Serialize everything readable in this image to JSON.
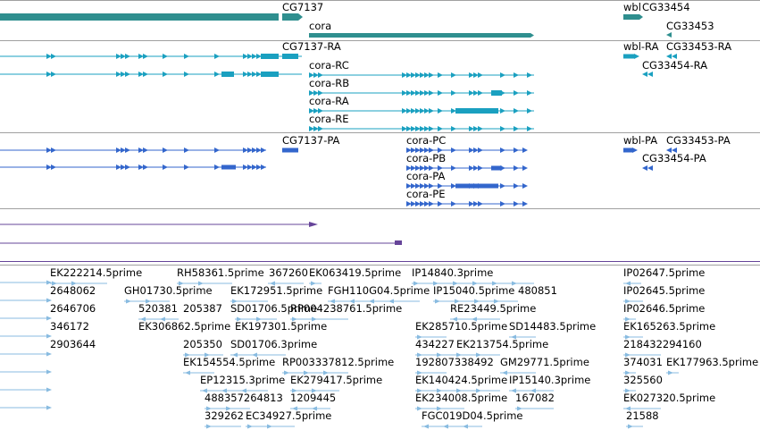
{
  "colors": {
    "gene": "#2f8f8f",
    "transcript_rna": "#1aa0c0",
    "transcript_protein": "#3366cc",
    "alignment": "#664499",
    "est": "#88bbe0",
    "divider": "#a0a0a0"
  },
  "tracks": {
    "gene_track": {
      "labels": [
        "CG7137",
        "cora",
        "wbl",
        "CG33454",
        "CG33453"
      ]
    },
    "rna_track": {
      "labels": [
        "CG7137-RA",
        "cora-RC",
        "cora-RB",
        "cora-RA",
        "cora-RE",
        "wbl-RA",
        "CG33453-RA",
        "CG33454-RA"
      ]
    },
    "protein_track": {
      "labels": [
        "CG7137-PA",
        "cora-PC",
        "cora-PB",
        "cora-PA",
        "cora-PE",
        "wbl-PA",
        "CG33453-PA",
        "CG33454-PA"
      ]
    },
    "est_track": {
      "labels": [
        "EK222214.5prime",
        "RH58361.5prime",
        "367260",
        "EK063419.5prime",
        "IP14840.3prime",
        "IP02647.5prime",
        "2648062",
        "GH01730.5prime",
        "EK172951.5prime",
        "FGH110G04.5prime",
        "IP15040.5prime",
        "480851",
        "IP02645.5prime",
        "2646706",
        "520381",
        "205387",
        "SD01706.5prime",
        "RP004238761.5prime",
        "RE23449.5prime",
        "IP02646.5prime",
        "346172",
        "EK306862.5prime",
        "EK197301.5prime",
        "EK285710.5prime",
        "SD14483.5prime",
        "EK165263.5prime",
        "2903644",
        "205350",
        "SD01706.3prime",
        "434227",
        "EK213754.5prime",
        "218432294160",
        "EK154554.5prime",
        "RP003337812.5prime",
        "192807338492",
        "GM29771.5prime",
        "374031",
        "EK177963.5prime",
        "EP12315.3prime",
        "EK279417.5prime",
        "EK140424.5prime",
        "IP15140.3prime",
        "325560",
        "488357264813",
        "1209445",
        "EK234008.5prime",
        "167082",
        "EK027320.5prime",
        "329262",
        "EC34927.5prime",
        "FGC019D04.5prime",
        "21588"
      ]
    }
  }
}
